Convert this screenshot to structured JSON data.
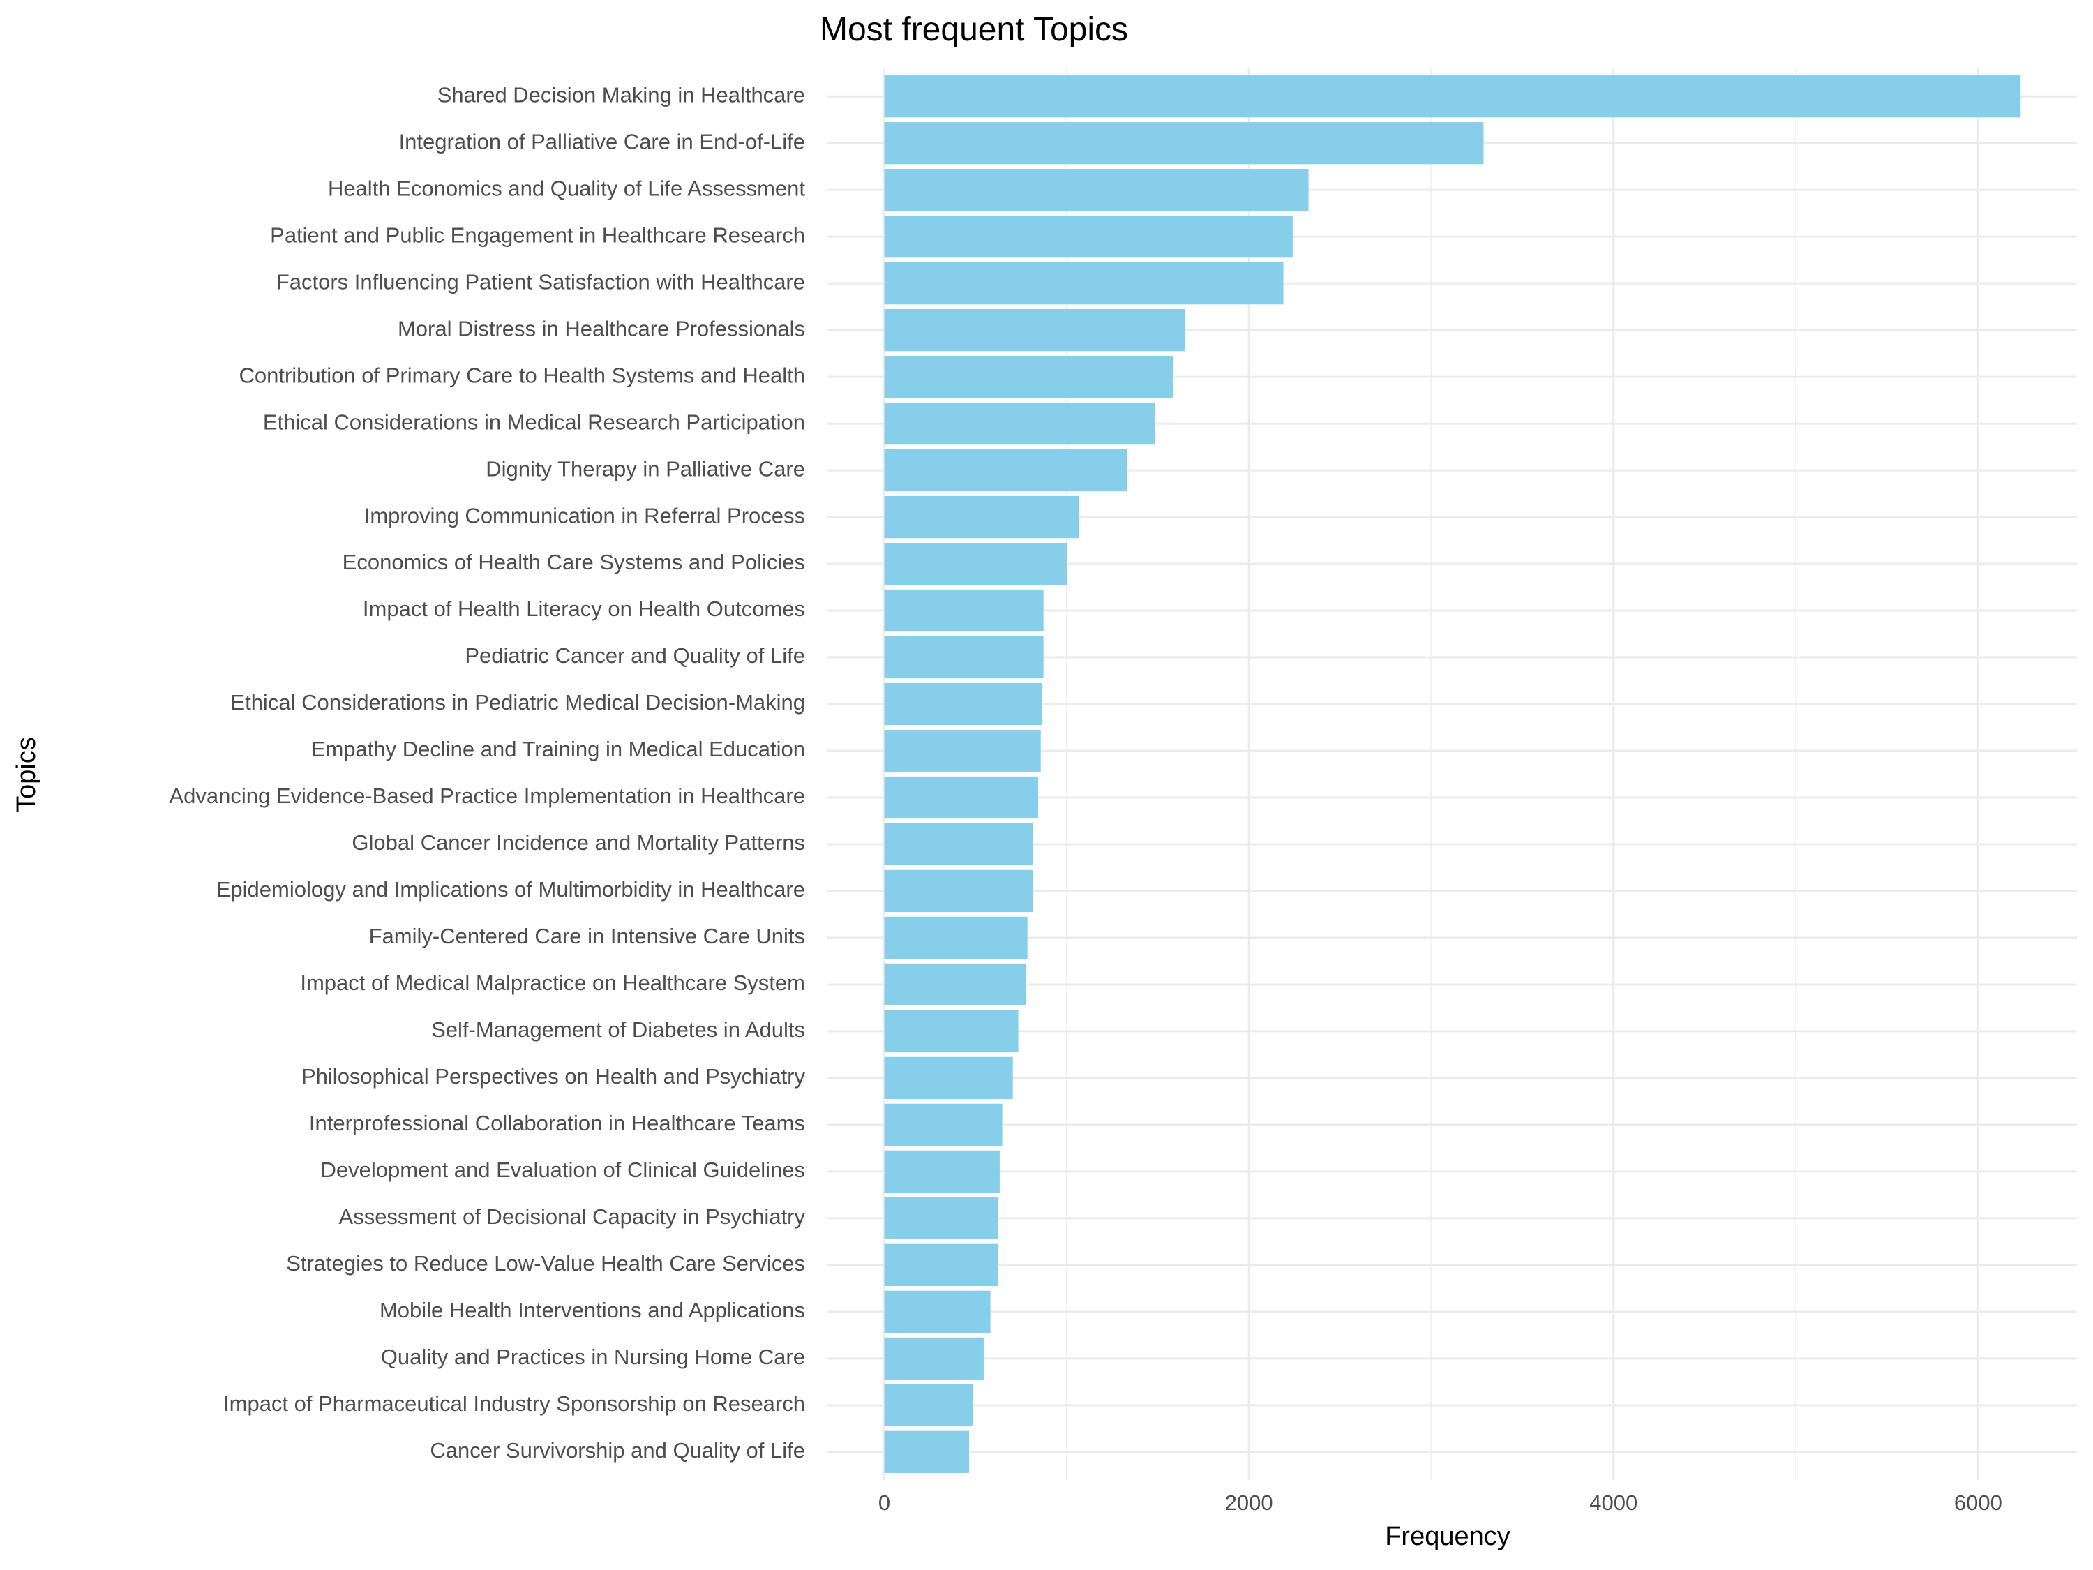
{
  "chart_data": {
    "type": "bar",
    "orientation": "horizontal",
    "title": "Most frequent Topics",
    "x_label": "Frequency",
    "y_label": "Topics",
    "color": "#87ceeb",
    "grid": true,
    "categories": [
      "Shared Decision Making in Healthcare",
      "Integration of Palliative Care in End-of-Life",
      "Health Economics and Quality of Life Assessment",
      "Patient and Public Engagement in Healthcare Research",
      "Factors Influencing Patient Satisfaction with Healthcare",
      "Moral Distress in Healthcare Professionals",
      "Contribution of Primary Care to Health Systems and Health",
      "Ethical Considerations in Medical Research Participation",
      "Dignity Therapy in Palliative Care",
      "Improving Communication in Referral Process",
      "Economics of Health Care Systems and Policies",
      "Impact of Health Literacy on Health Outcomes",
      "Pediatric Cancer and Quality of Life",
      "Ethical Considerations in Pediatric Medical Decision-Making",
      "Empathy Decline and Training in Medical Education",
      "Advancing Evidence-Based Practice Implementation in Healthcare",
      "Global Cancer Incidence and Mortality Patterns",
      "Epidemiology and Implications of Multimorbidity in Healthcare",
      "Family-Centered Care in Intensive Care Units",
      "Impact of Medical Malpractice on Healthcare System",
      "Self-Management of Diabetes in Adults",
      "Philosophical Perspectives on Health and Psychiatry",
      "Interprofessional Collaboration in Healthcare Teams",
      "Development and Evaluation of Clinical Guidelines",
      "Assessment of Decisional Capacity in Psychiatry",
      "Strategies to Reduce Low-Value Health Care Services",
      "Mobile Health Interventions and Applications",
      "Quality and Practices in Nursing Home Care",
      "Impact of Pharmaceutical Industry Sponsorship on Research",
      "Cancer Survivorship and Quality of Life"
    ],
    "values": [
      6233,
      3287,
      2327,
      2240,
      2189,
      1651,
      1585,
      1484,
      1331,
      1069,
      1004,
      873,
      873,
      865,
      858,
      844,
      815,
      815,
      785,
      778,
      735,
      705,
      647,
      633,
      625,
      625,
      582,
      545,
      487,
      465
    ],
    "xlim": [
      -312,
      6542
    ],
    "xticks": [
      0,
      2000,
      4000,
      6000
    ]
  }
}
